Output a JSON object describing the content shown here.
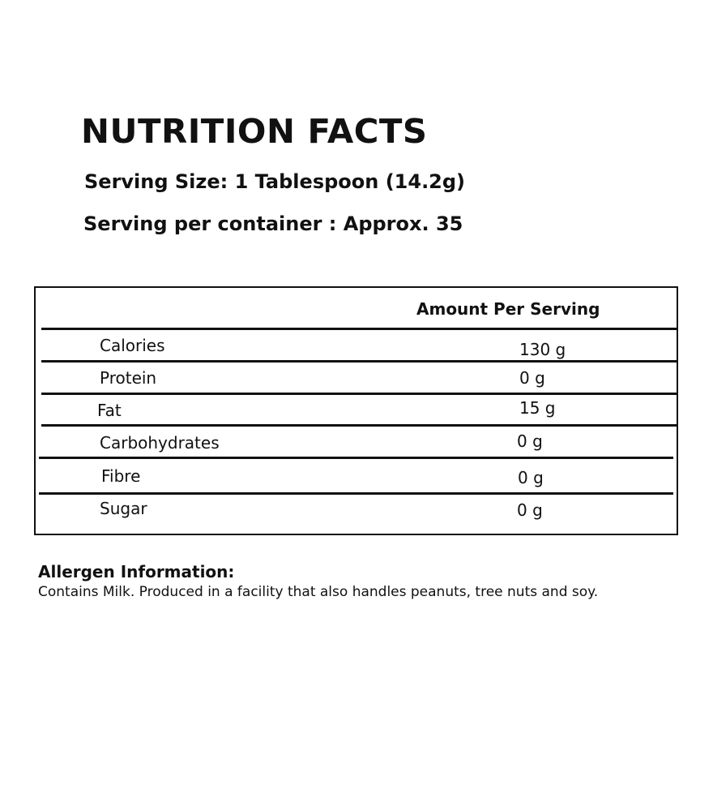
{
  "title": "NUTRITION FACTS",
  "serving_size": "Serving Size: 1 Tablespoon (14.2g)",
  "servings_per_container": "Serving per container : Approx. 35",
  "table": {
    "header": "Amount Per Serving",
    "rows": [
      {
        "nutrient": "Calories",
        "amount": "130 g"
      },
      {
        "nutrient": "Protein",
        "amount": "0 g"
      },
      {
        "nutrient": "Fat",
        "amount": "15 g"
      },
      {
        "nutrient": "Carbohydrates",
        "amount": "0 g"
      },
      {
        "nutrient": "Fibre",
        "amount": "0 g"
      },
      {
        "nutrient": "Sugar",
        "amount": "0 g"
      }
    ]
  },
  "allergen": {
    "heading": "Allergen Information:",
    "text": "Contains Milk. Produced in a facility that also handles peanuts, tree nuts and soy."
  }
}
